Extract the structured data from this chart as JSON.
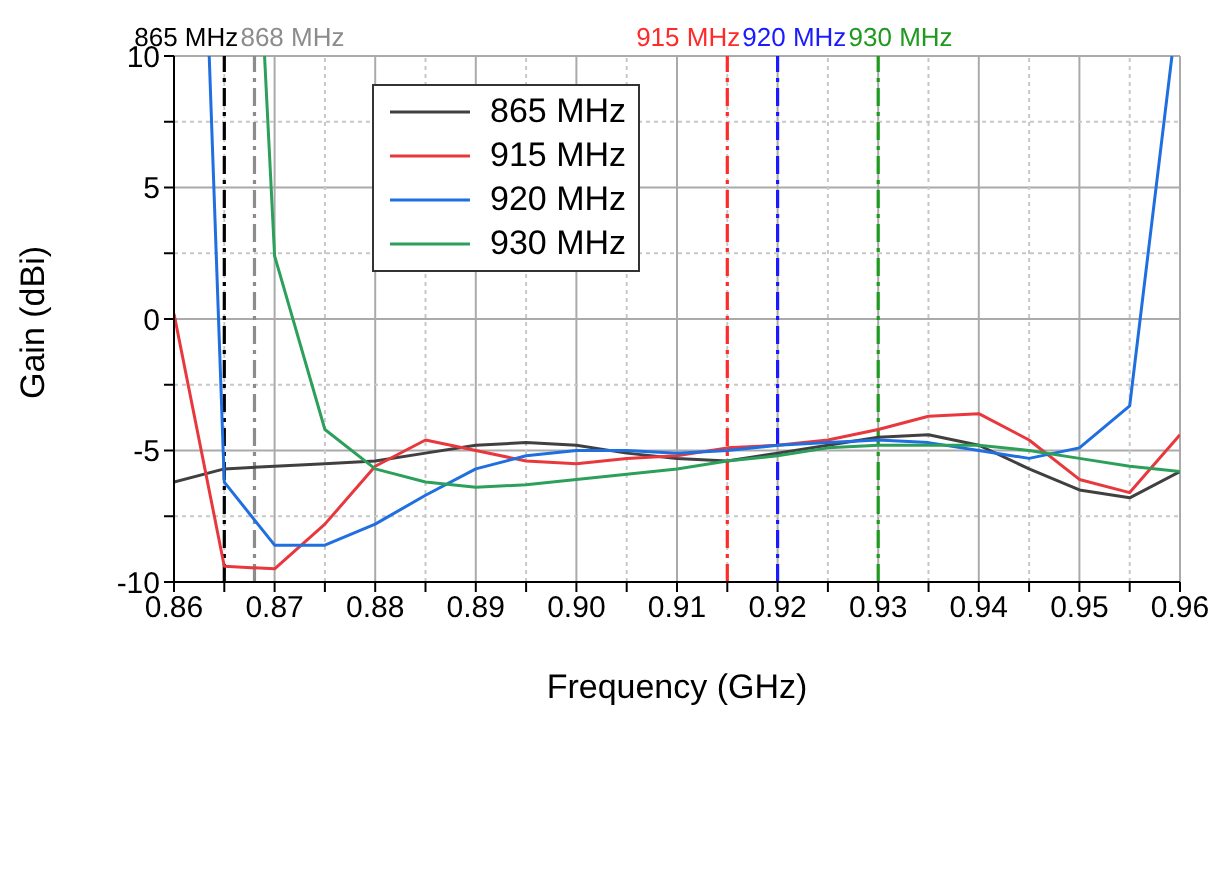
{
  "chart_data": {
    "type": "line",
    "xlabel": "Frequency (GHz)",
    "ylabel": "Gain (dBi)",
    "x": [
      0.86,
      0.865,
      0.87,
      0.875,
      0.88,
      0.885,
      0.89,
      0.895,
      0.9,
      0.905,
      0.91,
      0.915,
      0.92,
      0.925,
      0.93,
      0.935,
      0.94,
      0.945,
      0.95,
      0.955,
      0.96
    ],
    "series": [
      {
        "name": "865 MHz",
        "color": "#404040",
        "values": [
          -6.2,
          -5.7,
          -5.6,
          -5.5,
          -5.4,
          -5.1,
          -4.8,
          -4.7,
          -4.8,
          -5.1,
          -5.3,
          -5.4,
          -5.1,
          -4.8,
          -4.5,
          -4.4,
          -4.8,
          -5.7,
          -6.5,
          -6.8,
          -5.8
        ]
      },
      {
        "name": "915 MHz",
        "color": "#e8383d",
        "values": [
          0.2,
          -9.4,
          -9.5,
          -7.8,
          -5.6,
          -4.6,
          -5.0,
          -5.4,
          -5.5,
          -5.3,
          -5.2,
          -4.9,
          -4.8,
          -4.6,
          -4.2,
          -3.7,
          -3.6,
          -4.6,
          -6.1,
          -6.6,
          -4.4
        ]
      },
      {
        "name": "920 MHz",
        "color": "#1f6fe0",
        "x": [
          0.8635,
          0.865,
          0.87,
          0.875,
          0.88,
          0.885,
          0.89,
          0.895,
          0.9,
          0.905,
          0.91,
          0.915,
          0.92,
          0.925,
          0.93,
          0.935,
          0.94,
          0.945,
          0.95,
          0.955,
          0.9592
        ],
        "values": [
          10,
          -6.2,
          -8.6,
          -8.6,
          -7.8,
          -6.7,
          -5.7,
          -5.2,
          -5.0,
          -5.0,
          -5.1,
          -5.0,
          -4.8,
          -4.7,
          -4.6,
          -4.7,
          -5.0,
          -5.3,
          -4.9,
          -3.3,
          10
        ]
      },
      {
        "name": "930 MHz",
        "color": "#2ca05a",
        "x": [
          0.869,
          0.87,
          0.875,
          0.88,
          0.885,
          0.89,
          0.895,
          0.9,
          0.905,
          0.91,
          0.915,
          0.92,
          0.925,
          0.93,
          0.935,
          0.94,
          0.945,
          0.95,
          0.955,
          0.96
        ],
        "values": [
          10,
          2.4,
          -4.2,
          -5.7,
          -6.2,
          -6.4,
          -6.3,
          -6.1,
          -5.9,
          -5.7,
          -5.4,
          -5.2,
          -4.9,
          -4.8,
          -4.8,
          -4.8,
          -5.0,
          -5.3,
          -5.6,
          -5.8
        ]
      }
    ],
    "xlim": [
      0.86,
      0.96
    ],
    "xticks": [
      {
        "value": 0.86,
        "label": "0.86"
      },
      {
        "value": 0.865,
        "label": null
      },
      {
        "value": 0.87,
        "label": "0.87"
      },
      {
        "value": 0.875,
        "label": null
      },
      {
        "value": 0.88,
        "label": "0.88"
      },
      {
        "value": 0.885,
        "label": null
      },
      {
        "value": 0.89,
        "label": "0.89"
      },
      {
        "value": 0.895,
        "label": null
      },
      {
        "value": 0.9,
        "label": "0.90"
      },
      {
        "value": 0.905,
        "label": null
      },
      {
        "value": 0.91,
        "label": "0.91"
      },
      {
        "value": 0.915,
        "label": null
      },
      {
        "value": 0.92,
        "label": "0.92"
      },
      {
        "value": 0.925,
        "label": null
      },
      {
        "value": 0.93,
        "label": "0.93"
      },
      {
        "value": 0.935,
        "label": null
      },
      {
        "value": 0.94,
        "label": "0.94"
      },
      {
        "value": 0.945,
        "label": null
      },
      {
        "value": 0.95,
        "label": "0.95"
      },
      {
        "value": 0.955,
        "label": null
      },
      {
        "value": 0.96,
        "label": "0.96"
      }
    ],
    "ylim": [
      -10,
      10
    ],
    "yticks": [
      -10,
      {
        "value": -7.5,
        "label": null
      },
      -5,
      {
        "value": -2.5,
        "label": null
      },
      0,
      {
        "value": 2.5,
        "label": null
      },
      5,
      {
        "value": 7.5,
        "label": null
      },
      10
    ],
    "ref_lines": [
      {
        "axis": "x",
        "value": 0.865,
        "label": "865 MHz",
        "color": "#000000",
        "line_style": "dashdot"
      },
      {
        "axis": "x",
        "value": 0.868,
        "label": "868 MHz",
        "color": "#8c8c8c",
        "line_style": "dashdot"
      },
      {
        "axis": "x",
        "value": 0.915,
        "label": "915 MHz",
        "color": "#ff2a2a",
        "line_style": "dashdot"
      },
      {
        "axis": "x",
        "value": 0.92,
        "label": "920 MHz",
        "color": "#1a1aff",
        "line_style": "dashdot"
      },
      {
        "axis": "x",
        "value": 0.93,
        "label": "930 MHz",
        "color": "#1f9a1f",
        "line_style": "dashdot"
      }
    ],
    "grid": true,
    "legend": "top",
    "marker": "none",
    "line_style": "solid"
  }
}
